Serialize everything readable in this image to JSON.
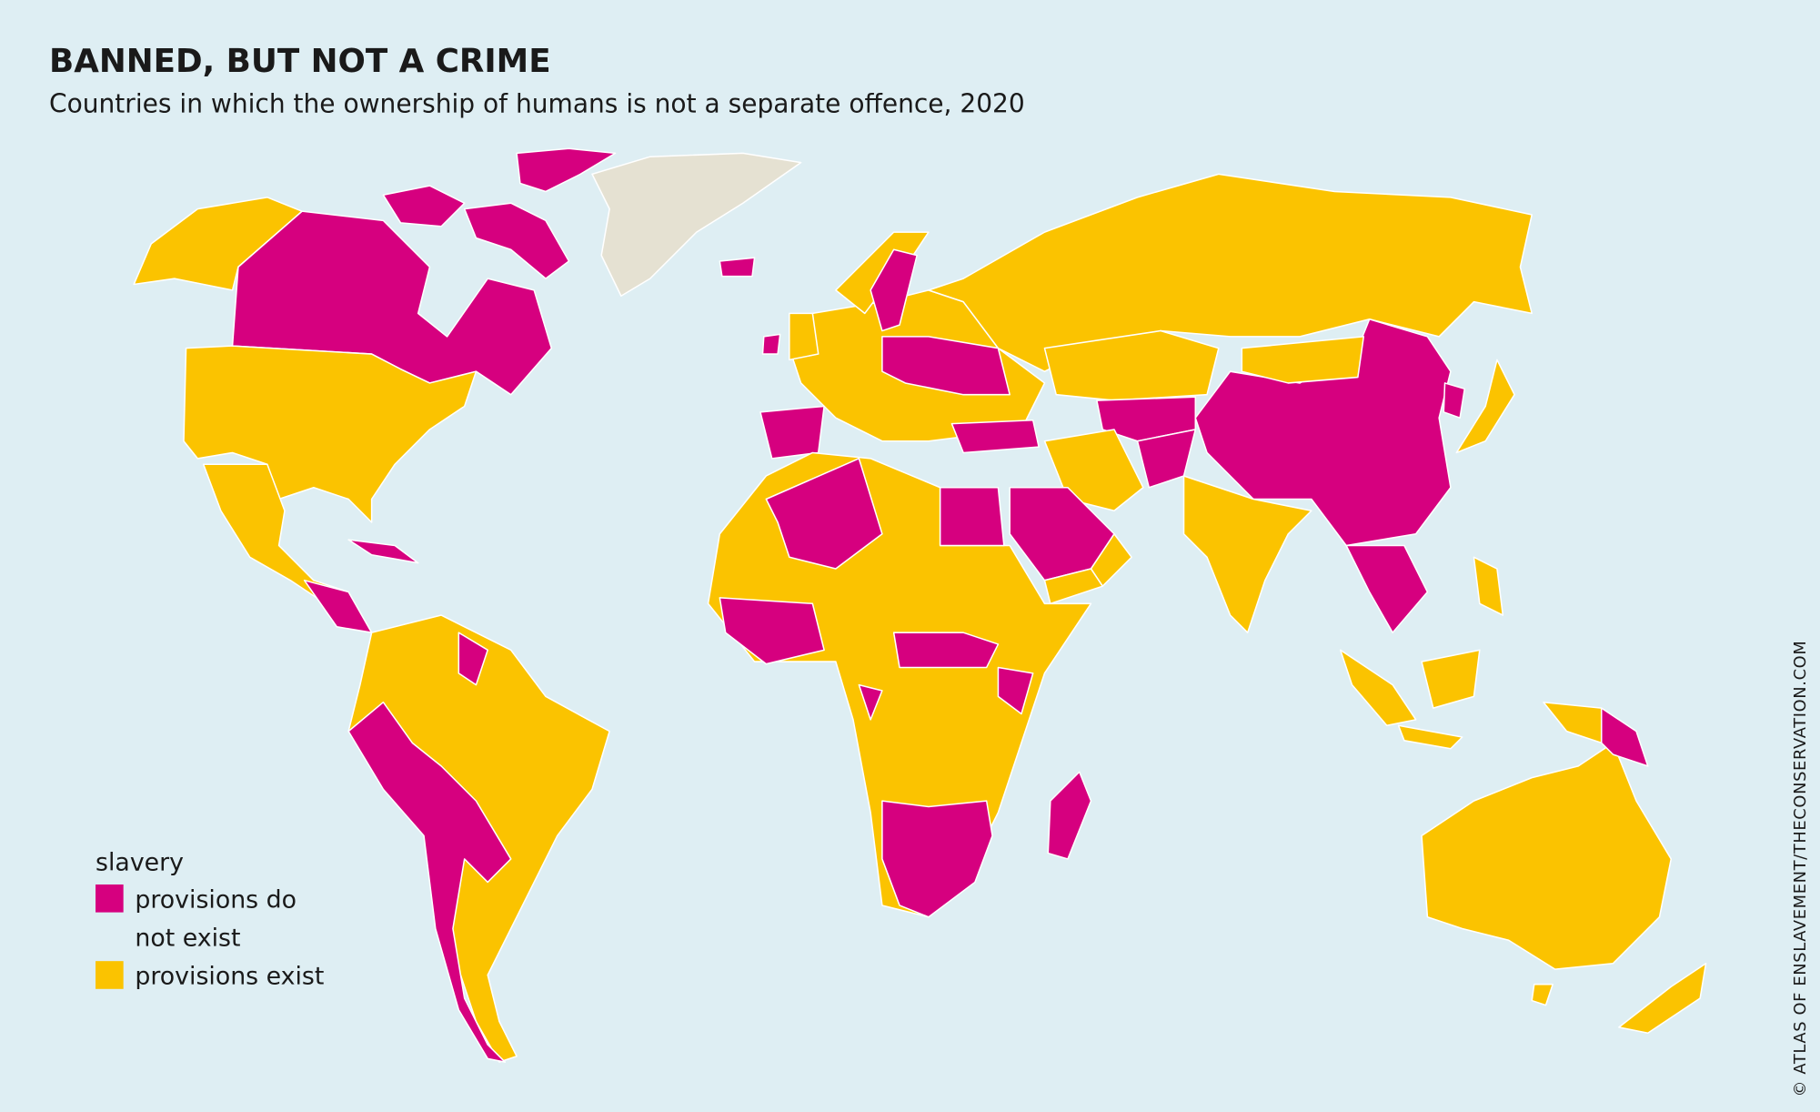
{
  "header": {
    "title": "BANNED, BUT NOT A CRIME",
    "subtitle": "Countries in which the ownership of humans is not a separate offence, 2020"
  },
  "legend": {
    "title": "slavery",
    "items": [
      {
        "label": [
          "provisions do",
          "not exist"
        ],
        "color": "#d6007f"
      },
      {
        "label": [
          "provisions exist"
        ],
        "color": "#fbc300"
      }
    ]
  },
  "credit": "© ATLAS OF ENSLAVEMENT/THECONSERVATION.COM"
}
